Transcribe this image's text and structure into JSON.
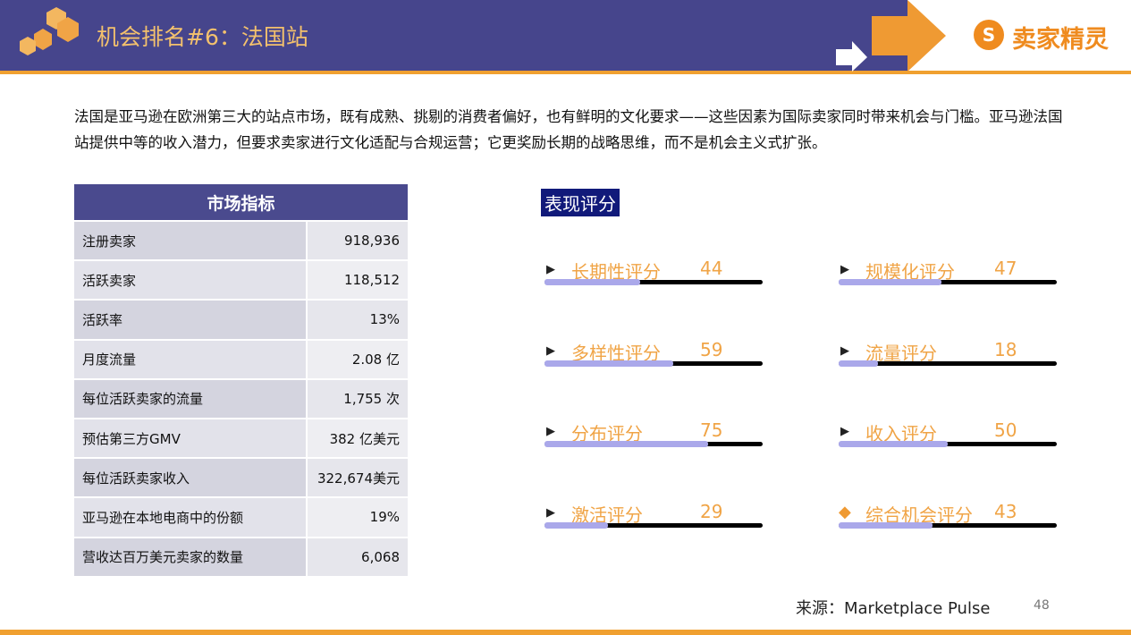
{
  "header": {
    "title": "机会排名#6：法国站",
    "logo": "卖家精灵"
  },
  "intro": "法国是亚马逊在欧洲第三大的站点市场，既有成熟、挑剔的消费者偏好，也有鲜明的文化要求——这些因素为国际卖家同时带来机会与门槛。亚马逊法国站提供中等的收入潜力，但要求卖家进行文化适配与合规运营；它更奖励长期的战略思维，而不是机会主义式扩张。",
  "table": {
    "header": "市场指标",
    "rows": [
      [
        "注册卖家",
        "918,936"
      ],
      [
        "活跃卖家",
        "118,512"
      ],
      [
        "活跃率",
        "13%"
      ],
      [
        "月度流量",
        "2.08 亿"
      ],
      [
        "每位活跃卖家的流量",
        "1,755 次"
      ],
      [
        "预估第三方GMV",
        "382 亿美元"
      ],
      [
        "每位活跃卖家收入",
        "322,674美元"
      ],
      [
        "亚马逊在本地电商中的份额",
        "19%"
      ],
      [
        "营收达百万美元卖家的数量",
        "6,068"
      ]
    ]
  },
  "scores": {
    "title": "表现评分",
    "items": [
      {
        "label": "长期性评分",
        "value": 44
      },
      {
        "label": "规模化评分",
        "value": 47
      },
      {
        "label": "多样性评分",
        "value": 59
      },
      {
        "label": "流量评分",
        "value": 18
      },
      {
        "label": "分布评分",
        "value": 75
      },
      {
        "label": "收入评分",
        "value": 50
      },
      {
        "label": "激活评分",
        "value": 29
      },
      {
        "label": "综合机会评分",
        "value": 43
      }
    ]
  },
  "source": "来源：Marketplace Pulse",
  "page_number": 48
}
